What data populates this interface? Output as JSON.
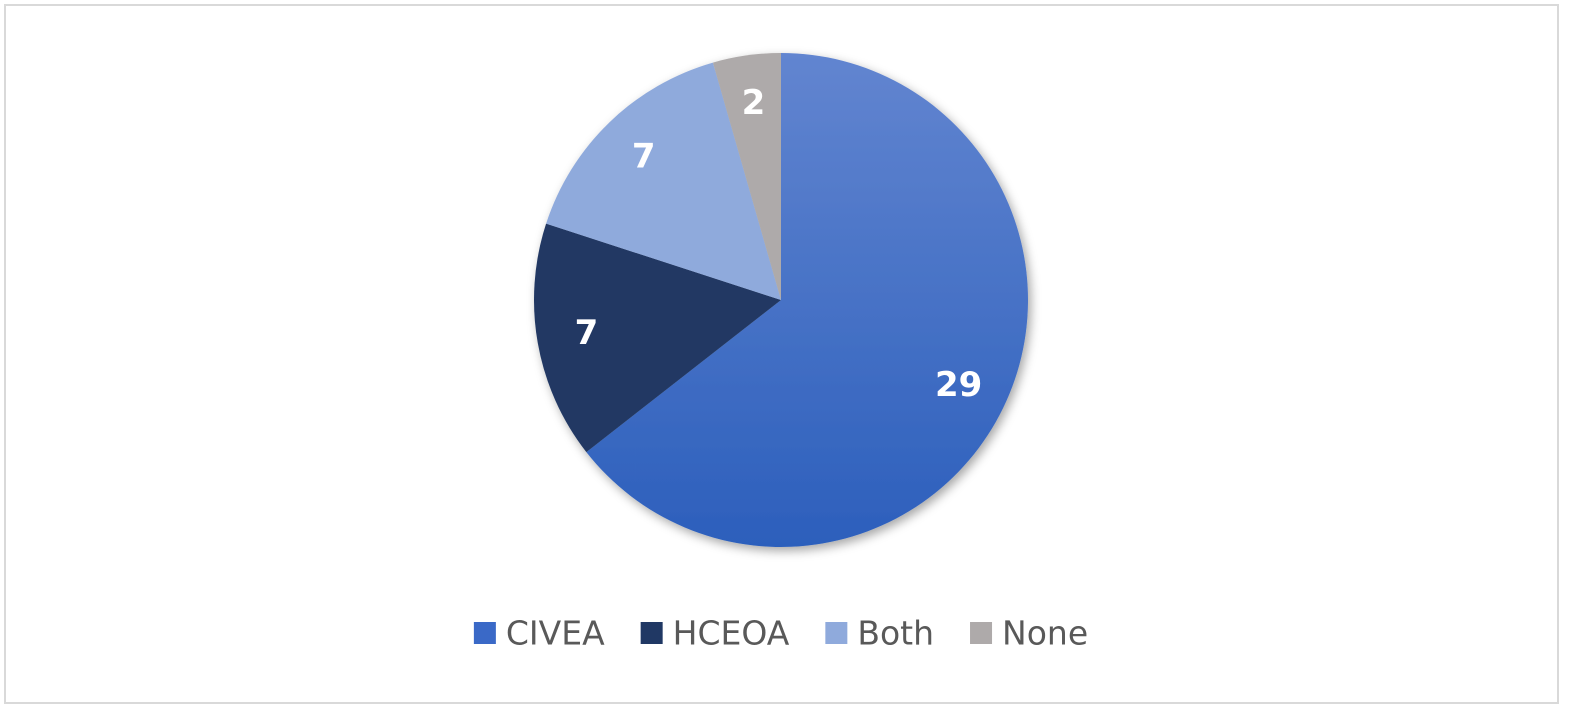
{
  "chart_data": {
    "type": "pie",
    "categories": [
      "CIVEA",
      "HCEOA",
      "Both",
      "None"
    ],
    "values": [
      29,
      7,
      7,
      2
    ],
    "colors": [
      "#3a69c7",
      "#203864",
      "#8faadc",
      "#aeaaaa"
    ],
    "legend": "bottom"
  }
}
